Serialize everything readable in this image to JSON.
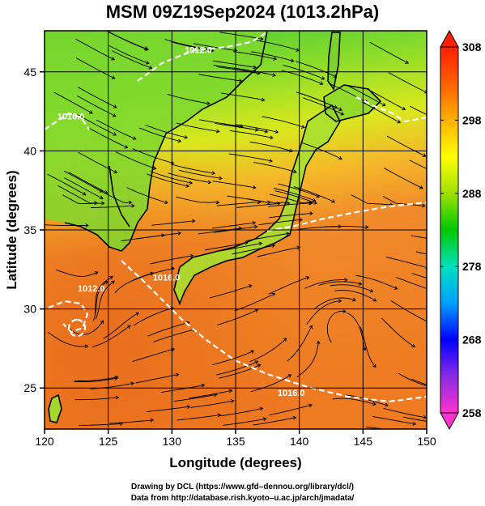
{
  "title": "MSM 09Z19Sep2024 (1013.2hPa)",
  "axes": {
    "xlabel": "Longitude (degrees)",
    "ylabel": "Latitude  (degrees)",
    "xticks": [
      "120",
      "125",
      "130",
      "135",
      "140",
      "145",
      "150"
    ],
    "yticks": [
      "25",
      "30",
      "35",
      "40",
      "45"
    ],
    "xlim": [
      120,
      150
    ],
    "ylim": [
      22.4,
      47.6
    ]
  },
  "colorbar": {
    "ticks": [
      "308",
      "298",
      "288",
      "278",
      "268",
      "258"
    ],
    "range": [
      258,
      308
    ],
    "colors": [
      "#ff33cc",
      "#8a2be2",
      "#0000ff",
      "#00a0ff",
      "#00e0c0",
      "#00c800",
      "#a0e000",
      "#ffff00",
      "#ffb000",
      "#ff6000",
      "#ff2000"
    ]
  },
  "contours": [
    {
      "label": "1012.0",
      "lon": 131.0,
      "lat": 46.2
    },
    {
      "label": "1016.0",
      "lon": 121.0,
      "lat": 42.0
    },
    {
      "label": "1012.0",
      "lon": 122.6,
      "lat": 31.1
    },
    {
      "label": "1016.0",
      "lon": 128.5,
      "lat": 31.8
    },
    {
      "label": "1016.0",
      "lon": 138.3,
      "lat": 24.5
    }
  ],
  "credits": {
    "line1": "Drawing by DCL (https://www.gfd–dennou.org/library/dcl/)",
    "line2": "Data from http://database.rish.kyoto–u.ac.jp/arch/jmadata/"
  }
}
